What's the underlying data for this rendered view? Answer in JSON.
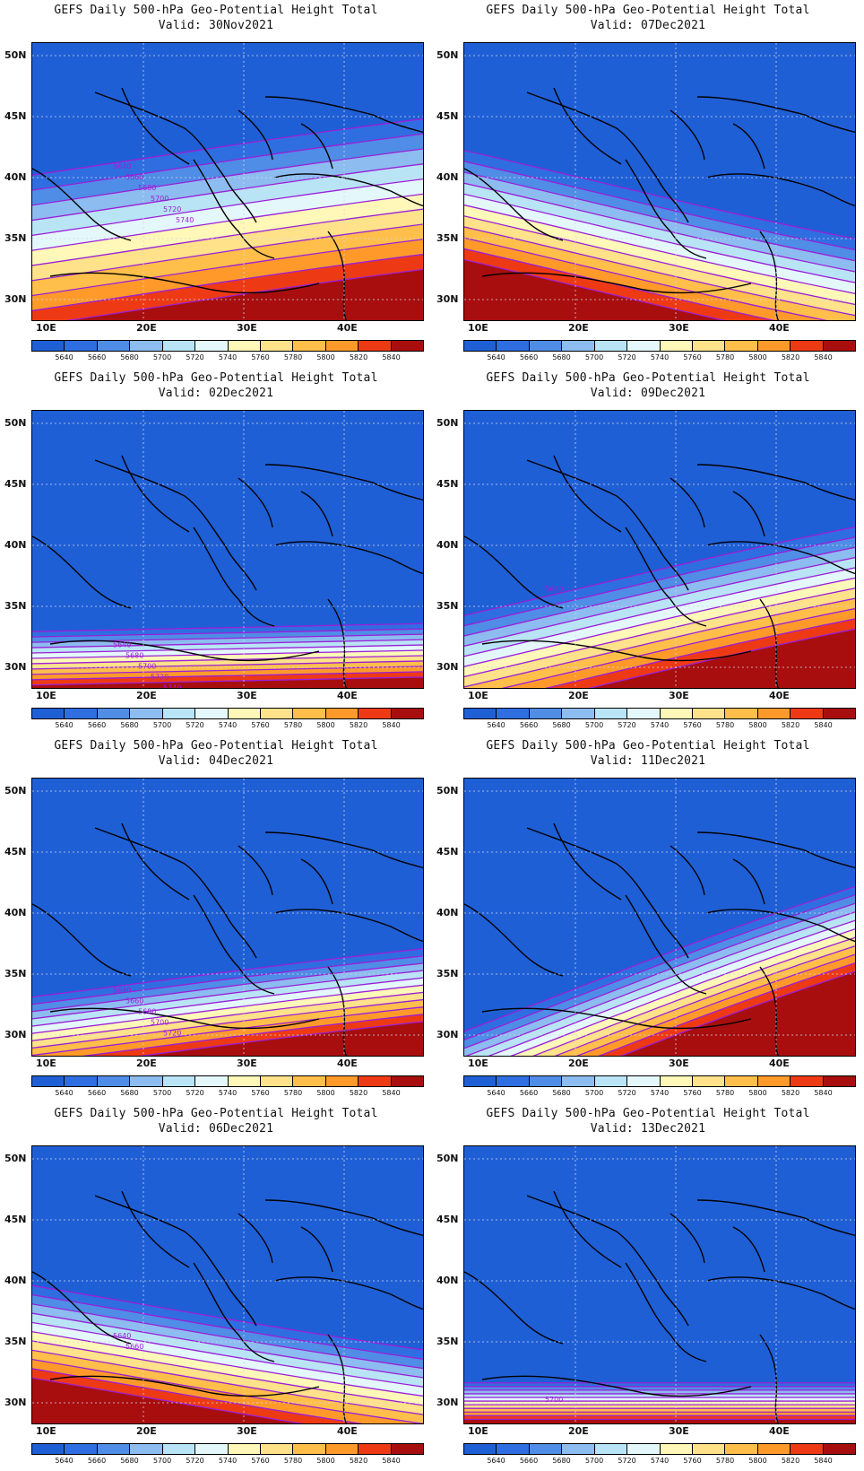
{
  "legend_levels": [
    "5640",
    "5660",
    "5680",
    "5700",
    "5720",
    "5740",
    "5760",
    "5780",
    "5800",
    "5820",
    "5840"
  ],
  "legend_colors": [
    "#1f5fd6",
    "#2f6ee0",
    "#4f8de6",
    "#8dbcf0",
    "#b9e4f5",
    "#e4f8fb",
    "#fff8b8",
    "#ffe28a",
    "#ffbf4a",
    "#ff9a2a",
    "#ee3a14",
    "#a80e0e"
  ],
  "contour_color": "#9b1fd8",
  "land_color": "#1f5fd6",
  "lat_labels": [
    "50N",
    "45N",
    "40N",
    "35N",
    "30N"
  ],
  "lon_labels": [
    "10E",
    "20E",
    "30E",
    "40E"
  ],
  "panels": [
    {
      "title": "GEFS Daily 500-hPa Geo-Potential Height Total",
      "valid": "Valid: 30Nov2021",
      "warm": 0.62,
      "tilt": 0.35,
      "labels": [
        "5640",
        "5660",
        "5680",
        "5700",
        "5720",
        "5740"
      ]
    },
    {
      "title": "GEFS Daily 500-hPa Geo-Potential Height Total",
      "valid": "Valid: 07Dec2021",
      "warm": 0.45,
      "tilt": -0.55,
      "labels": []
    },
    {
      "title": "GEFS Daily 500-hPa Geo-Potential Height Total",
      "valid": "Valid: 02Dec2021",
      "warm": 0.22,
      "tilt": 0.05,
      "labels": [
        "5640",
        "5680",
        "5700",
        "5720",
        "5740",
        "5760"
      ]
    },
    {
      "title": "GEFS Daily 500-hPa Geo-Potential Height Total",
      "valid": "Valid: 09Dec2021",
      "warm": 0.42,
      "tilt": 0.55,
      "labels": [
        "5640"
      ]
    },
    {
      "title": "GEFS Daily 500-hPa Geo-Potential Height Total",
      "valid": "Valid: 04Dec2021",
      "warm": 0.3,
      "tilt": 0.3,
      "labels": [
        "5640",
        "5660",
        "5680",
        "5700",
        "5720"
      ]
    },
    {
      "title": "GEFS Daily 500-hPa Geo-Potential Height Total",
      "valid": "Valid: 11Dec2021",
      "warm": 0.35,
      "tilt": 0.9,
      "labels": []
    },
    {
      "title": "GEFS Daily 500-hPa Geo-Potential Height Total",
      "valid": "Valid: 06Dec2021",
      "warm": 0.38,
      "tilt": -0.4,
      "labels": [
        "5640",
        "5660"
      ]
    },
    {
      "title": "GEFS Daily 500-hPa Geo-Potential Height Total",
      "valid": "Valid: 13Dec2021",
      "warm": 0.15,
      "tilt": 0.0,
      "labels": [
        "5700"
      ]
    }
  ]
}
